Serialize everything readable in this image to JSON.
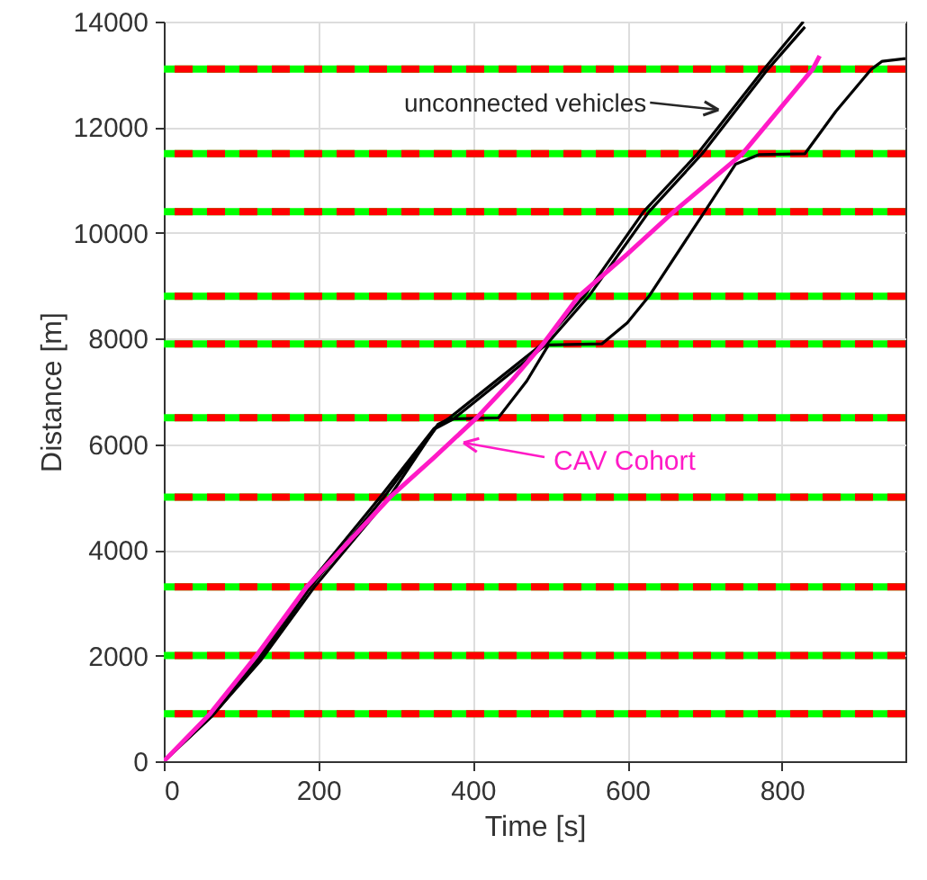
{
  "chart_data": {
    "type": "line",
    "xlabel": "Time [s]",
    "ylabel": "Distance [m]",
    "xlim": [
      0,
      960
    ],
    "ylim": [
      0,
      14000
    ],
    "xticks": [
      0,
      200,
      400,
      600,
      800
    ],
    "yticks": [
      0,
      2000,
      4000,
      6000,
      8000,
      10000,
      12000,
      14000
    ],
    "grid": true,
    "line_style": "solid",
    "marker": "none",
    "series": [
      {
        "color": "#000000",
        "x": [
          0,
          60,
          120,
          185,
          280,
          350,
          370,
          490,
          544,
          621,
          691,
          777,
          828
        ],
        "values": [
          0,
          850,
          1900,
          3300,
          5000,
          6300,
          6500,
          7900,
          8800,
          10400,
          11500,
          13100,
          14000
        ]
      },
      {
        "color": "#000000",
        "x": [
          0,
          62,
          123,
          190,
          285,
          352,
          375,
          496,
          550,
          628,
          697,
          782,
          830
        ],
        "values": [
          0,
          850,
          1900,
          3300,
          5000,
          6300,
          6480,
          7900,
          8800,
          10400,
          11500,
          13100,
          13900
        ]
      },
      {
        "color": "#000000",
        "x": [
          0,
          62,
          125,
          195,
          292,
          355,
          370,
          433,
          470,
          498,
          567,
          600,
          628,
          700,
          740,
          770,
          830,
          870,
          916,
          930,
          960
        ],
        "values": [
          0,
          850,
          1900,
          3300,
          5000,
          6380,
          6480,
          6500,
          7200,
          7880,
          7900,
          8300,
          8800,
          10400,
          11300,
          11480,
          11500,
          12300,
          13100,
          13250,
          13300
        ]
      },
      {
        "color": "#ff1ac6",
        "x": [
          0,
          60,
          120,
          185,
          293,
          350,
          405,
          450,
          491,
          537,
          600,
          660,
          749,
          840,
          849
        ],
        "values": [
          0,
          900,
          2000,
          3300,
          5000,
          5750,
          6500,
          7200,
          7900,
          8800,
          9600,
          10400,
          11500,
          13100,
          13350
        ]
      }
    ],
    "ref_lines": [
      {
        "axis": "y",
        "value": 900,
        "color": "#00ff00",
        "line_style": "solid"
      },
      {
        "axis": "y",
        "value": 900,
        "color": "#ff0000",
        "line_style": "dashed"
      },
      {
        "axis": "y",
        "value": 2000,
        "color": "#00ff00",
        "line_style": "solid"
      },
      {
        "axis": "y",
        "value": 2000,
        "color": "#ff0000",
        "line_style": "dashed"
      },
      {
        "axis": "y",
        "value": 3300,
        "color": "#00ff00",
        "line_style": "solid"
      },
      {
        "axis": "y",
        "value": 3300,
        "color": "#ff0000",
        "line_style": "dashed"
      },
      {
        "axis": "y",
        "value": 5000,
        "color": "#00ff00",
        "line_style": "solid"
      },
      {
        "axis": "y",
        "value": 5000,
        "color": "#ff0000",
        "line_style": "dashed"
      },
      {
        "axis": "y",
        "value": 6500,
        "color": "#00ff00",
        "line_style": "solid"
      },
      {
        "axis": "y",
        "value": 6500,
        "color": "#ff0000",
        "line_style": "dashed"
      },
      {
        "axis": "y",
        "value": 7900,
        "color": "#00ff00",
        "line_style": "solid"
      },
      {
        "axis": "y",
        "value": 7900,
        "color": "#ff0000",
        "line_style": "dashed"
      },
      {
        "axis": "y",
        "value": 8800,
        "color": "#00ff00",
        "line_style": "solid"
      },
      {
        "axis": "y",
        "value": 8800,
        "color": "#ff0000",
        "line_style": "dashed"
      },
      {
        "axis": "y",
        "value": 10400,
        "color": "#00ff00",
        "line_style": "solid"
      },
      {
        "axis": "y",
        "value": 10400,
        "color": "#ff0000",
        "line_style": "dashed"
      },
      {
        "axis": "y",
        "value": 11500,
        "color": "#00ff00",
        "line_style": "solid"
      },
      {
        "axis": "y",
        "value": 11500,
        "color": "#ff0000",
        "line_style": "dashed"
      },
      {
        "axis": "y",
        "value": 13100,
        "color": "#00ff00",
        "line_style": "solid"
      },
      {
        "axis": "y",
        "value": 13100,
        "color": "#ff0000",
        "line_style": "dashed"
      }
    ],
    "annotations": [
      {
        "text": "unconnected vehicles",
        "x": 718,
        "y": 12330
      },
      {
        "text": "CAV Cohort",
        "x": 388,
        "y": 6030
      }
    ]
  }
}
